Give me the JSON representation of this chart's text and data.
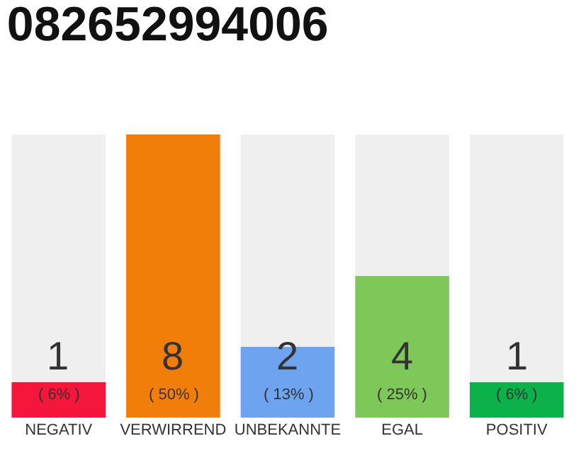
{
  "chart_data": {
    "type": "bar",
    "title": "082652994006",
    "categories": [
      "NEGATIV",
      "VERWIRREND",
      "UNBEKANNTE",
      "EGAL",
      "POSITIV"
    ],
    "values": [
      1,
      8,
      2,
      4,
      1
    ],
    "colors": [
      "#f5173b",
      "#f27e0a",
      "#6ea3f0",
      "#7ec85a",
      "#0bb24a"
    ],
    "data_labels": true,
    "annotations": [
      {
        "text": "( 6% )",
        "x": "NEGATIV",
        "y": 0
      },
      {
        "text": "( 50% )",
        "x": "VERWIRREND",
        "y": 0
      },
      {
        "text": "( 13% )",
        "x": "UNBEKANNTE",
        "y": 0
      },
      {
        "text": "( 25% )",
        "x": "EGAL",
        "y": 0
      },
      {
        "text": "( 6% )",
        "x": "POSITIV",
        "y": 0
      }
    ]
  }
}
